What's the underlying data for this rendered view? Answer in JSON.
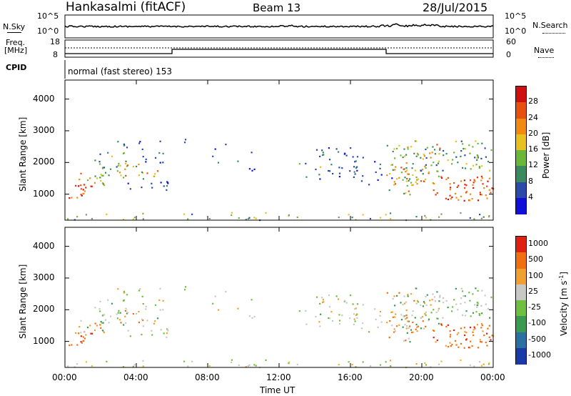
{
  "header": {
    "station": "Hankasalmi (fitACF)",
    "beam": "Beam 13",
    "date": "28/Jul/2015"
  },
  "noise_panel": {
    "left_label": "N.Sky",
    "right_label": "N.Search",
    "left_ticks": [
      "10^5",
      "10^0"
    ],
    "right_ticks": [
      "10^5",
      "10^0"
    ]
  },
  "freq_panel": {
    "left_label_1": "Freq.",
    "left_label_2": "[MHz]",
    "right_label": "Nave",
    "left_ticks": [
      "18",
      "8"
    ],
    "right_ticks": [
      "60",
      "0"
    ]
  },
  "cpid": {
    "label": "CPID",
    "text": "normal (fast stereo) 153"
  },
  "chart_data": [
    {
      "type": "heatmap",
      "title": "",
      "xlabel": "Time UT",
      "ylabel": "Slant Range [km]",
      "x_ticks": [
        "00:00",
        "04:00",
        "08:00",
        "12:00",
        "16:00",
        "20:00",
        "00:00"
      ],
      "x_range_hours": [
        0,
        24
      ],
      "y_ticks": [
        1000,
        2000,
        3000,
        4000
      ],
      "ylim": [
        180,
        4600
      ],
      "colorbar_label": "Power [dB]",
      "colorbar_ticks": [
        4,
        8,
        12,
        16,
        20,
        24,
        28
      ],
      "colorbar_colors": [
        "#1010d8",
        "#2c4aa8",
        "#3a8a60",
        "#6ab838",
        "#e8c020",
        "#f08a10",
        "#e85010",
        "#d01010"
      ]
    },
    {
      "type": "heatmap",
      "title": "",
      "xlabel": "Time UT",
      "ylabel": "Slant Range [km]",
      "x_ticks": [
        "00:00",
        "04:00",
        "08:00",
        "12:00",
        "16:00",
        "20:00",
        "00:00"
      ],
      "x_range_hours": [
        0,
        24
      ],
      "y_ticks": [
        1000,
        2000,
        3000,
        4000
      ],
      "ylim": [
        180,
        4600
      ],
      "colorbar_label": "Velocity [m s^-1]",
      "colorbar_ticks": [
        1000,
        500,
        100,
        25,
        -25,
        -100,
        -500,
        -1000
      ],
      "colorbar_colors": [
        "#1a3aa8",
        "#2a70a0",
        "#3a9a50",
        "#70c040",
        "#c8c8c4",
        "#f0a030",
        "#f07010",
        "#e02010"
      ]
    }
  ],
  "time_axis_label": "Time UT"
}
